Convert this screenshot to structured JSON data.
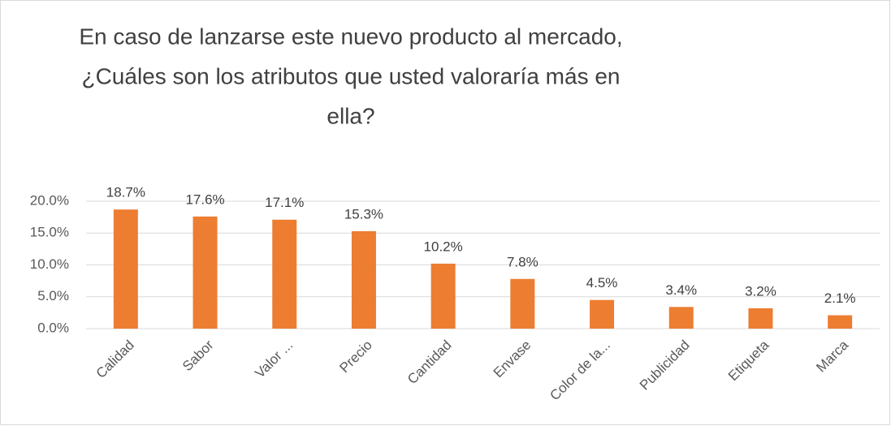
{
  "chart_data": {
    "type": "bar",
    "title": [
      "En caso de lanzarse este nuevo producto al mercado,",
      "¿Cuáles son los atributos que usted valoraría más en",
      "ella?"
    ],
    "categories": [
      "Calidad",
      "Sabor",
      "Valor ...",
      "Precio",
      "Cantidad",
      "Envase",
      "Color de la...",
      "Publicidad",
      "Etiqueta",
      "Marca"
    ],
    "values": [
      18.7,
      17.6,
      17.1,
      15.3,
      10.2,
      7.8,
      4.5,
      3.4,
      3.2,
      2.1
    ],
    "value_labels": [
      "18.7%",
      "17.6%",
      "17.1%",
      "15.3%",
      "10.2%",
      "7.8%",
      "4.5%",
      "3.4%",
      "3.2%",
      "2.1%"
    ],
    "color": "#ed7d31",
    "ylim": [
      0,
      20
    ],
    "yticks": [
      {
        "value": 0,
        "label": "0.0%"
      },
      {
        "value": 5,
        "label": "5.0%"
      },
      {
        "value": 10,
        "label": "10.0%"
      },
      {
        "value": 15,
        "label": "15.0%"
      },
      {
        "value": 20,
        "label": "20.0%"
      }
    ],
    "grid": true
  }
}
